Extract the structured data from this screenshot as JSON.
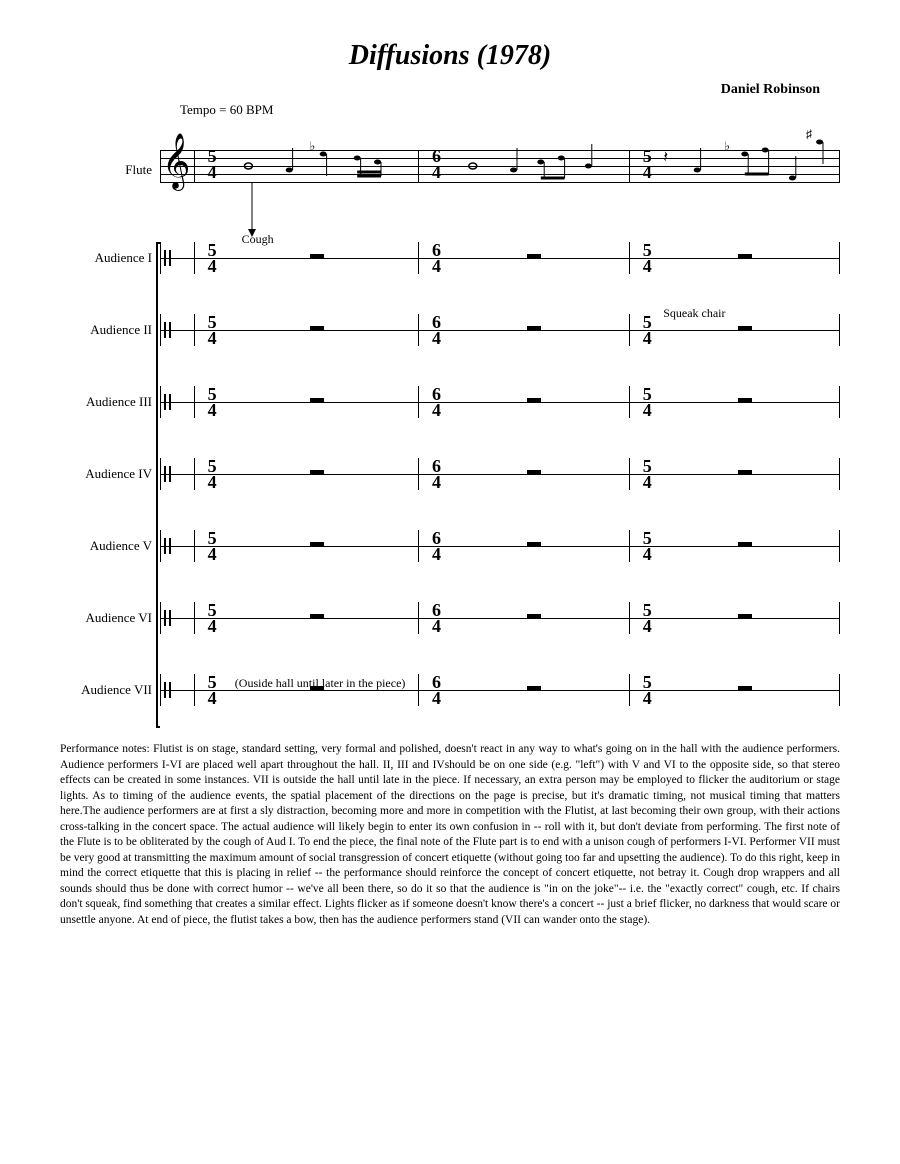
{
  "title": "Diffusions (1978)",
  "composer": "Daniel Robinson",
  "tempo": "Tempo = 60 BPM",
  "instruments": {
    "flute": "Flute",
    "audience": [
      "Audience I",
      "Audience II",
      "Audience III",
      "Audience IV",
      "Audience V",
      "Audience VI",
      "Audience VII"
    ]
  },
  "time_signatures": [
    {
      "num": "5",
      "den": "4",
      "x_pct": 7
    },
    {
      "num": "6",
      "den": "4",
      "x_pct": 40
    },
    {
      "num": "5",
      "den": "4",
      "x_pct": 71
    }
  ],
  "annotations": {
    "cough": "Cough",
    "squeak": "Squeak chair",
    "outside": "(Ouside hall until later in the piece)"
  },
  "barlines_pct": [
    0,
    5,
    38,
    69,
    100
  ],
  "rest_positions_pct": [
    22,
    54,
    85
  ],
  "colors": {
    "bg": "#ffffff",
    "ink": "#000000"
  },
  "performance_notes": "Performance notes: Flutist is on stage, standard setting, very formal and polished, doesn't react in any way to what's going on in the hall with the audience performers. Audience performers I-VI are placed well apart throughout the hall. II, III and IVshould be on one side (e.g. \"left\") with V and VI to the opposite side, so that stereo effects can be created in some instances. VII is outside the hall until late in the piece. If necessary, an extra person may be employed to flicker the auditorium or stage lights. As to timing of the audience events, the spatial placement of the directions on the page is precise, but it's dramatic timing, not musical timing that matters here.The audience performers are at first a sly distraction, becoming more and more in competition with the Flutist, at last becoming their own group, with their actions cross-talking in the concert space. The actual audience will likely begin to enter its own confusion in -- roll with it, but don't deviate from performing. The first note of the Flute is to be obliterated by the cough of Aud I. To end the piece, the final note of the Flute part is to end with a unison cough of performers I-VI. Performer VII must be very good at transmitting the maximum amount of social transgression of concert etiquette (without going too far and upsetting the audience). To do this right, keep in mind the correct etiquette that this is placing in relief -- the performance should reinforce the concept of concert etiquette, not betray it. Cough drop wrappers and all sounds should thus be done with correct humor -- we've all been there, so do it so that the audience is \"in on the joke\"-- i.e. the \"exactly correct\" cough, etc. If chairs don't squeak, find something that creates a similar effect. Lights flicker as if someone doesn't know there's a concert -- just a brief flicker, no darkness that would scare or unsettle anyone. At end of piece, the flutist takes a bow, then has the audience performers stand (VII can wander onto the stage)."
}
